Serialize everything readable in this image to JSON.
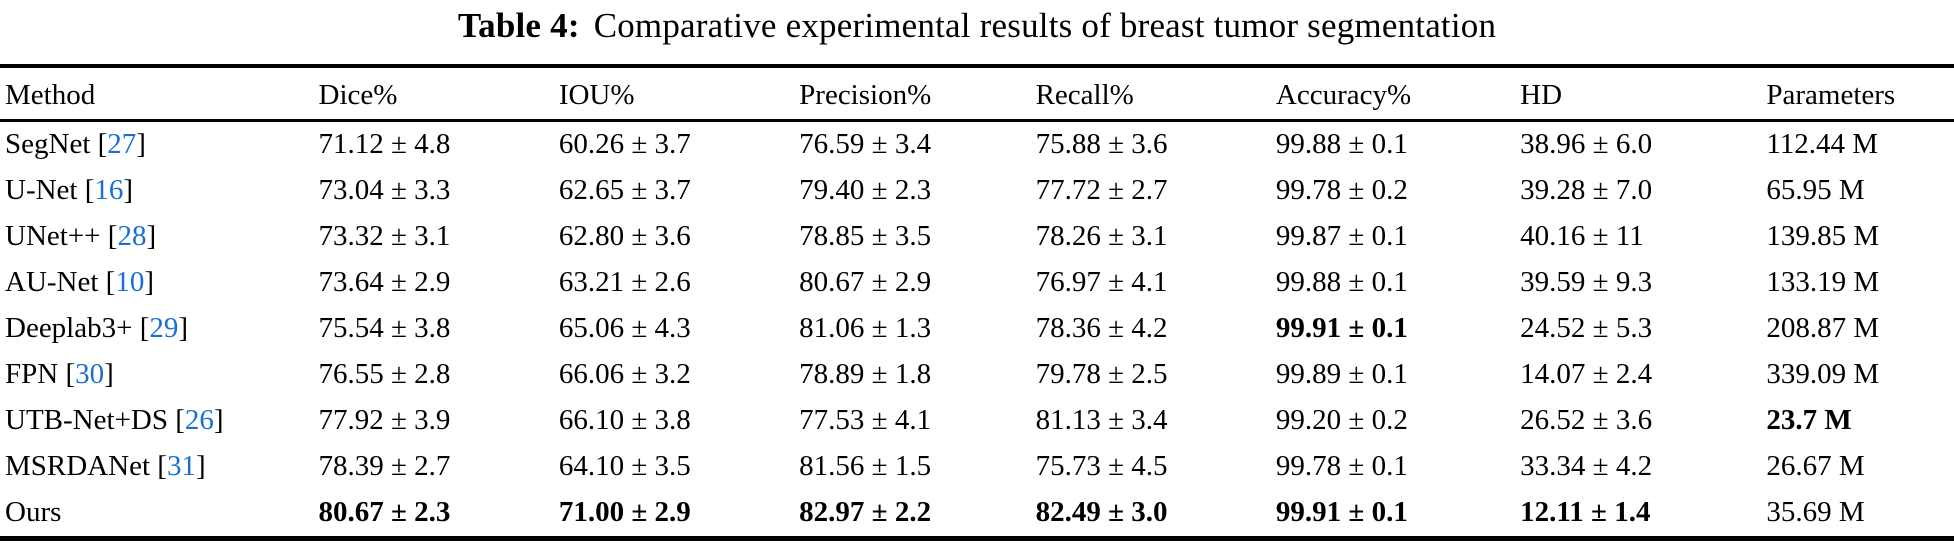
{
  "title": {
    "label": "Table 4:",
    "text": "Comparative experimental results of breast tumor segmentation"
  },
  "table": {
    "columns": [
      "Method",
      "Dice%",
      "IOU%",
      "Precision%",
      "Recall%",
      "Accuracy%",
      "HD",
      "Parameters"
    ],
    "bracket_open": "[",
    "bracket_close": "]",
    "rows": [
      {
        "method": "SegNet",
        "cite": "27",
        "cells": [
          "71.12 ± 4.8",
          "60.26 ± 3.7",
          "76.59 ± 3.4",
          "75.88 ± 3.6",
          "99.88 ± 0.1",
          "38.96 ± 6.0",
          "112.44 M"
        ],
        "bold": []
      },
      {
        "method": "U-Net",
        "cite": "16",
        "cells": [
          "73.04 ± 3.3",
          "62.65 ± 3.7",
          "79.40 ± 2.3",
          "77.72 ± 2.7",
          "99.78 ± 0.2",
          "39.28 ± 7.0",
          "65.95 M"
        ],
        "bold": []
      },
      {
        "method": "UNet++",
        "cite": "28",
        "cells": [
          "73.32 ± 3.1",
          "62.80 ± 3.6",
          "78.85 ± 3.5",
          "78.26 ± 3.1",
          "99.87 ± 0.1",
          "40.16 ± 11",
          "139.85 M"
        ],
        "bold": []
      },
      {
        "method": "AU-Net",
        "cite": "10",
        "cells": [
          "73.64 ± 2.9",
          "63.21 ± 2.6",
          "80.67 ± 2.9",
          "76.97 ± 4.1",
          "99.88 ± 0.1",
          "39.59 ± 9.3",
          "133.19 M"
        ],
        "bold": []
      },
      {
        "method": "Deeplab3+",
        "cite": "29",
        "cells": [
          "75.54 ± 3.8",
          "65.06 ± 4.3",
          "81.06 ± 1.3",
          "78.36 ± 4.2",
          "99.91 ± 0.1",
          "24.52 ± 5.3",
          "208.87 M"
        ],
        "bold": [
          4
        ]
      },
      {
        "method": "FPN",
        "cite": "30",
        "cells": [
          "76.55 ± 2.8",
          "66.06 ± 3.2",
          "78.89 ± 1.8",
          "79.78 ± 2.5",
          "99.89 ± 0.1",
          "14.07 ± 2.4",
          "339.09 M"
        ],
        "bold": []
      },
      {
        "method": "UTB-Net+DS",
        "cite": "26",
        "cells": [
          "77.92 ± 3.9",
          "66.10 ± 3.8",
          "77.53 ± 4.1",
          "81.13 ± 3.4",
          "99.20 ± 0.2",
          "26.52 ± 3.6",
          "23.7 M"
        ],
        "bold": [
          6
        ]
      },
      {
        "method": "MSRDANet",
        "cite": "31",
        "cells": [
          "78.39 ± 2.7",
          "64.10 ± 3.5",
          "81.56 ± 1.5",
          "75.73 ± 4.5",
          "99.78 ± 0.1",
          "33.34 ± 4.2",
          "26.67 M"
        ],
        "bold": []
      },
      {
        "method": "Ours",
        "cite": "",
        "cells": [
          "80.67 ± 2.3",
          "71.00 ± 2.9",
          "82.97 ± 2.2",
          "82.49 ± 3.0",
          "99.91 ± 0.1",
          "12.11 ± 1.4",
          "35.69 M"
        ],
        "bold": [
          0,
          1,
          2,
          3,
          4,
          5
        ]
      }
    ],
    "column_widths_pct": [
      16.3,
      12.3,
      12.3,
      12.1,
      12.3,
      12.5,
      12.6,
      9.6
    ]
  },
  "colors": {
    "citation_blue": "#1a6fd4",
    "text": "#000000"
  }
}
